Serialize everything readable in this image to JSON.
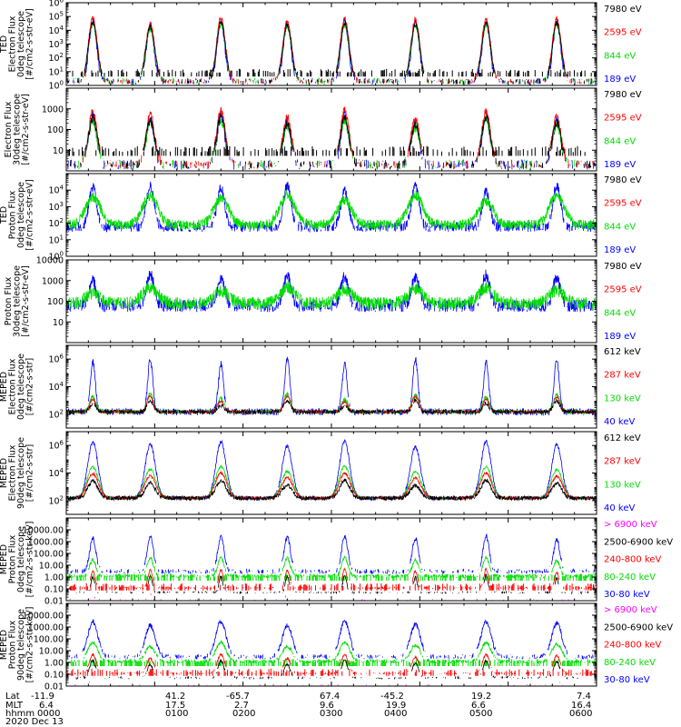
{
  "footer": {
    "row_labels": [
      "Lat",
      "MLT",
      "hhmm"
    ],
    "date": "2020 Dec 13",
    "columns": [
      {
        "lat": "-11.9",
        "mlt": "6.4",
        "time": "0000"
      },
      {
        "lat": "41.2",
        "mlt": "17.5",
        "time": "0100"
      },
      {
        "lat": "-65.7",
        "mlt": "2.7",
        "time": "0200"
      },
      {
        "lat": "67.4",
        "mlt": "9.6",
        "time": "0300"
      },
      {
        "lat": "-45.2",
        "mlt": "19.9",
        "time": "0400"
      },
      {
        "lat": "19.2",
        "mlt": "6.6",
        "time": "0500"
      },
      {
        "lat": "7.4",
        "mlt": "16.4",
        "time": "0600"
      }
    ]
  },
  "colors": {
    "black": "#000000",
    "red": "#ff0000",
    "green": "#00dd00",
    "blue": "#0000ff",
    "magenta": "#ff00ff"
  },
  "chart_data": [
    {
      "type": "line",
      "title": "TED Electron Flux 0deg telescope",
      "ylabel": [
        "TED",
        "Electron Flux",
        "0deg telescope",
        "[#/cm2-s-str-eV]"
      ],
      "yscale": "log",
      "ylim": [
        1,
        1000000
      ],
      "yticks": [
        {
          "v": 1,
          "base": "10",
          "exp": "0"
        },
        {
          "v": 10,
          "base": "10",
          "exp": "1"
        },
        {
          "v": 100,
          "base": "10",
          "exp": "2"
        },
        {
          "v": 1000,
          "base": "10",
          "exp": "3"
        },
        {
          "v": 10000,
          "base": "10",
          "exp": "4"
        },
        {
          "v": 100000,
          "base": "10",
          "exp": "5"
        },
        {
          "v": 1000000,
          "base": "10",
          "exp": "6"
        }
      ],
      "legend": [
        {
          "label": "7980 eV",
          "color": "black"
        },
        {
          "label": "2595 eV",
          "color": "red"
        },
        {
          "label": "844 eV",
          "color": "green"
        },
        {
          "label": "189 eV",
          "color": "blue"
        }
      ],
      "mode": "ted_e",
      "seed": 11
    },
    {
      "type": "line",
      "title": "TED Electron Flux 30deg telescope",
      "ylabel": [
        "Electron Flux",
        "30deg telescope",
        "[#/cm2-s-str-eV]"
      ],
      "yscale": "log",
      "ylim": [
        1,
        10000
      ],
      "yticks": [
        {
          "v": 10,
          "label": "10"
        },
        {
          "v": 100,
          "label": "100"
        },
        {
          "v": 1000,
          "label": "1000"
        }
      ],
      "legend": [
        {
          "label": "7980 eV",
          "color": "black"
        },
        {
          "label": "2595 eV",
          "color": "red"
        },
        {
          "label": "844 eV",
          "color": "green"
        },
        {
          "label": "189 eV",
          "color": "blue"
        }
      ],
      "mode": "ted_e",
      "seed": 23
    },
    {
      "type": "line",
      "title": "TED Proton Flux 0deg telescope",
      "ylabel": [
        "TED",
        "Proton Flux",
        "0deg telescope",
        "[#/cm2-s-str-eV]"
      ],
      "yscale": "log",
      "ylim": [
        1,
        100000
      ],
      "yticks": [
        {
          "v": 1,
          "base": "10",
          "exp": "0"
        },
        {
          "v": 10,
          "base": "10",
          "exp": "1"
        },
        {
          "v": 100,
          "base": "10",
          "exp": "2"
        },
        {
          "v": 1000,
          "base": "10",
          "exp": "3"
        },
        {
          "v": 10000,
          "base": "10",
          "exp": "4"
        }
      ],
      "legend": [
        {
          "label": "7980 eV",
          "color": "black"
        },
        {
          "label": "2595 eV",
          "color": "red"
        },
        {
          "label": "844 eV",
          "color": "green"
        },
        {
          "label": "189 eV",
          "color": "blue"
        }
      ],
      "mode": "ted_p",
      "seed": 37
    },
    {
      "type": "line",
      "title": "TED Proton Flux 30deg telescope",
      "ylabel": [
        "Proton Flux",
        "30deg telescope",
        "[#/cm2-s-str-eV]"
      ],
      "yscale": "log",
      "ylim": [
        1,
        10000
      ],
      "yticks": [
        {
          "v": 10,
          "label": "10"
        },
        {
          "v": 100,
          "label": "100"
        },
        {
          "v": 1000,
          "label": "1000"
        },
        {
          "v": 10000,
          "label": "10000"
        }
      ],
      "legend": [
        {
          "label": "7980 eV",
          "color": "black"
        },
        {
          "label": "2595 eV",
          "color": "red"
        },
        {
          "label": "844 eV",
          "color": "green"
        },
        {
          "label": "189 eV",
          "color": "blue"
        }
      ],
      "mode": "ted_p",
      "seed": 41
    },
    {
      "type": "line",
      "title": "MEPED Electron Flux 0deg telescope",
      "ylabel": [
        "MEPED",
        "Electron Flux",
        "0deg telescope",
        "[#/cm2-s-str]"
      ],
      "yscale": "log",
      "ylim": [
        10,
        10000000
      ],
      "yticks": [
        {
          "v": 100,
          "base": "10",
          "exp": "2"
        },
        {
          "v": 10000,
          "base": "10",
          "exp": "4"
        },
        {
          "v": 1000000,
          "base": "10",
          "exp": "6"
        }
      ],
      "legend": [
        {
          "label": "612 keV",
          "color": "black"
        },
        {
          "label": "287 keV",
          "color": "red"
        },
        {
          "label": "130 keV",
          "color": "green"
        },
        {
          "label": "40 keV",
          "color": "blue"
        }
      ],
      "mode": "mep_e0",
      "seed": 53
    },
    {
      "type": "line",
      "title": "MEPED Electron Flux 90deg telescope",
      "ylabel": [
        "MEPED",
        "Electron Flux",
        "90deg telescope",
        "[#/cm2-s-str]"
      ],
      "yscale": "log",
      "ylim": [
        10,
        10000000
      ],
      "yticks": [
        {
          "v": 100,
          "base": "10",
          "exp": "2"
        },
        {
          "v": 10000,
          "base": "10",
          "exp": "4"
        },
        {
          "v": 1000000,
          "base": "10",
          "exp": "6"
        }
      ],
      "legend": [
        {
          "label": "612 keV",
          "color": "black"
        },
        {
          "label": "287 keV",
          "color": "red"
        },
        {
          "label": "130 keV",
          "color": "green"
        },
        {
          "label": "40 keV",
          "color": "blue"
        }
      ],
      "mode": "mep_e90",
      "seed": 67
    },
    {
      "type": "line",
      "title": "MEPED Proton Flux 0deg telescope",
      "ylabel": [
        "MEPED",
        "Proton Flux",
        "0deg telescope",
        "[#/cm2-s-str-keV]"
      ],
      "yscale": "log",
      "ylim": [
        0.01,
        100000
      ],
      "yticks": [
        {
          "v": 0.01,
          "label": "0.01"
        },
        {
          "v": 0.1,
          "label": "0.10"
        },
        {
          "v": 1,
          "label": "1.00"
        },
        {
          "v": 10,
          "label": "10.00"
        },
        {
          "v": 100,
          "label": "100.00"
        },
        {
          "v": 1000,
          "label": "1000.00"
        },
        {
          "v": 10000,
          "label": "10000.00"
        }
      ],
      "legend": [
        {
          "label": "> 6900 keV",
          "color": "magenta"
        },
        {
          "label": "2500-6900 keV",
          "color": "black"
        },
        {
          "label": "240-800 keV",
          "color": "red"
        },
        {
          "label": "80-240 keV",
          "color": "green"
        },
        {
          "label": "30-80 keV",
          "color": "blue"
        }
      ],
      "mode": "mep_p0",
      "seed": 79
    },
    {
      "type": "line",
      "title": "MEPED Proton Flux 90deg telescope",
      "ylabel": [
        "MEPED",
        "Proton Flux",
        "90deg telescope",
        "[#/cm2-s-str-keV]"
      ],
      "yscale": "log",
      "ylim": [
        0.01,
        100000
      ],
      "yticks": [
        {
          "v": 0.01,
          "label": "0.01"
        },
        {
          "v": 0.1,
          "label": "0.10"
        },
        {
          "v": 1,
          "label": "1.00"
        },
        {
          "v": 10,
          "label": "10.00"
        },
        {
          "v": 100,
          "label": "100.00"
        },
        {
          "v": 1000,
          "label": "1000.00"
        },
        {
          "v": 10000,
          "label": "10000.00"
        }
      ],
      "legend": [
        {
          "label": "> 6900 keV",
          "color": "magenta"
        },
        {
          "label": "2500-6900 keV",
          "color": "black"
        },
        {
          "label": "240-800 keV",
          "color": "red"
        },
        {
          "label": "80-240 keV",
          "color": "green"
        },
        {
          "label": "30-80 keV",
          "color": "blue"
        }
      ],
      "mode": "mep_p90",
      "seed": 83
    }
  ],
  "x_axis": {
    "units": "hhmm",
    "start": 0,
    "end": 6,
    "pass_centers": [
      0.3,
      0.95,
      1.75,
      2.5,
      3.15,
      3.95,
      4.75,
      5.55
    ]
  }
}
